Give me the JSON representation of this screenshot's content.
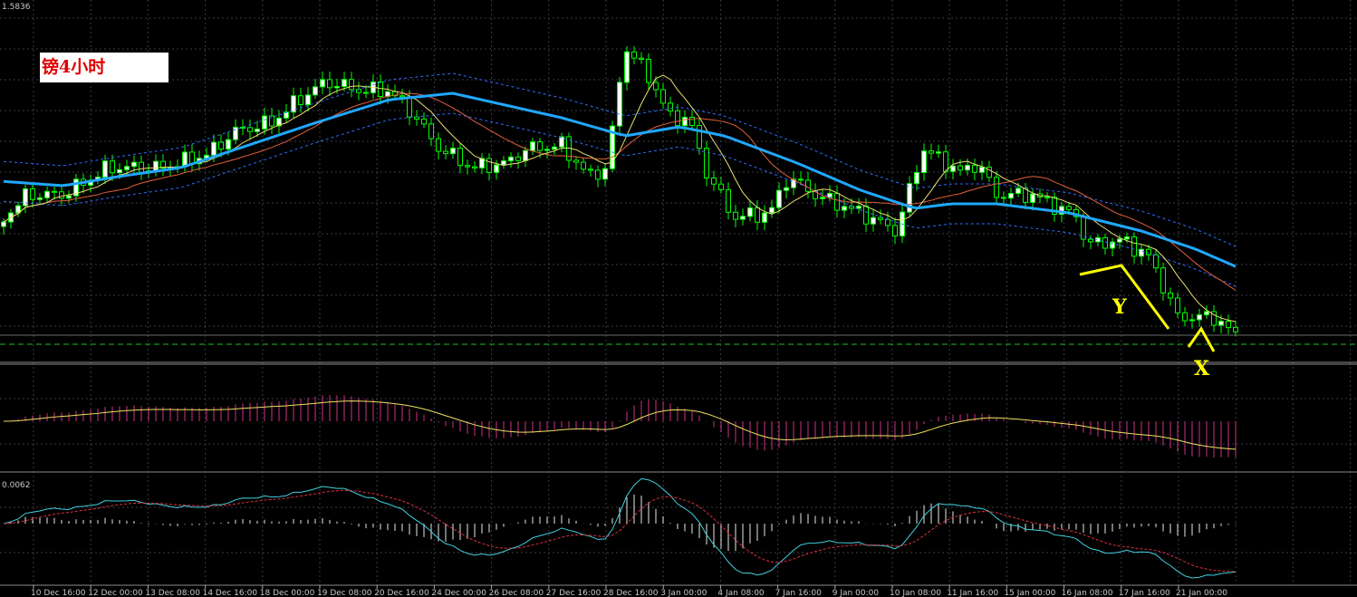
{
  "header": {
    "symbol_label": "镑4小时",
    "price_label": "1.5836"
  },
  "annotations": {
    "wave_y": "Y",
    "wave_x": "X"
  },
  "indicator_label": "0.0062",
  "x_axis": {
    "labels": [
      "10 Dec 16:00",
      "12 Dec 00:00",
      "13 Dec 08:00",
      "14 Dec 16:00",
      "18 Dec 00:00",
      "19 Dec 08:00",
      "20 Dec 16:00",
      "24 Dec 00:00",
      "26 Dec 08:00",
      "27 Dec 16:00",
      "28 Dec 16:00",
      "3 Jan 00:00",
      "4 Jan 08:00",
      "7 Jan 16:00",
      "9 Jan 00:00",
      "10 Jan 08:00",
      "11 Jan 16:00",
      "15 Jan 00:00",
      "16 Jan 08:00",
      "17 Jan 16:00",
      "21 Jan 00:00"
    ]
  }
}
